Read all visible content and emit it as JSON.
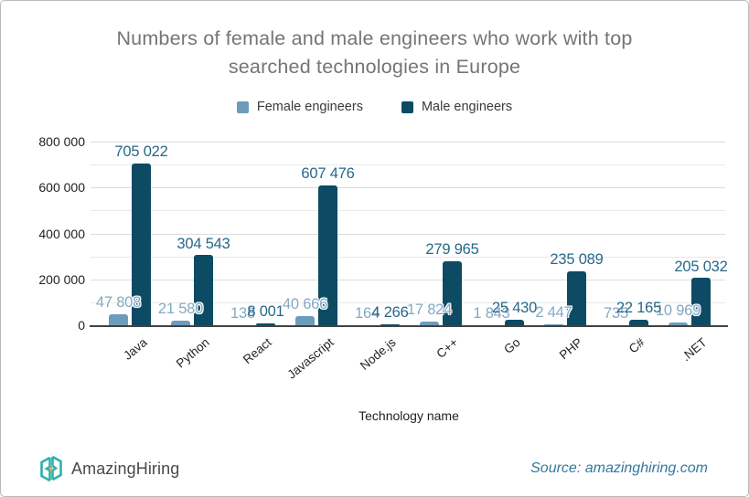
{
  "title_lines": [
    "Numbers of female and male engineers who work with top",
    "searched technologies in Europe"
  ],
  "legend": {
    "items": [
      {
        "label": "Female engineers",
        "color": "#6d9cba"
      },
      {
        "label": "Male engineers",
        "color": "#0d4a63"
      }
    ]
  },
  "chart_data": {
    "type": "bar",
    "title": "Numbers of female and male engineers who work with top searched technologies in Europe",
    "xlabel": "Technology name",
    "ylabel": "",
    "categories": [
      "Java",
      "Python",
      "React",
      "Javascript",
      "Node.js",
      "C++",
      "Go",
      "PHP",
      "C#",
      ".NET"
    ],
    "series": [
      {
        "name": "Female engineers",
        "color": "#6d9cba",
        "label_color": "#84a9c4",
        "values": [
          47808,
          21580,
          138,
          40666,
          164,
          17824,
          1843,
          2447,
          735,
          10969
        ],
        "labels": [
          "47 808",
          "21 580",
          "138",
          "40 666",
          "164",
          "17 824",
          "1 843",
          "2 447",
          "735",
          "10 969"
        ]
      },
      {
        "name": "Male engineers",
        "color": "#0d4a63",
        "label_color": "#27688a",
        "values": [
          705022,
          304543,
          8001,
          607476,
          4266,
          279965,
          25430,
          235089,
          22165,
          205032
        ],
        "labels": [
          "705 022",
          "304 543",
          "8 001",
          "607 476",
          "4 266",
          "279 965",
          "25 430",
          "235 089",
          "22 165",
          "205 032"
        ]
      }
    ],
    "ylim": [
      0,
      800000
    ],
    "grid_step": 100000,
    "grid_on": true,
    "legend_position": "top",
    "y_ticks": [
      {
        "value": 0,
        "label": "0"
      },
      {
        "value": 200000,
        "label": "200 000"
      },
      {
        "value": 400000,
        "label": "400 000"
      },
      {
        "value": 600000,
        "label": "600 000"
      },
      {
        "value": 800000,
        "label": "800 000"
      }
    ]
  },
  "footer": {
    "brand": "AmazingHiring",
    "source": "Source: amazinghiring.com",
    "logo_colors": {
      "teal": "#2fb0ab",
      "orange": "#f0a13c"
    }
  },
  "colors": {
    "title": "#757575",
    "axis_text": "#1f1f1f",
    "grid_minor": "#e9e9e9",
    "grid_major": "#dcdcdc",
    "baseline": "#424242"
  }
}
